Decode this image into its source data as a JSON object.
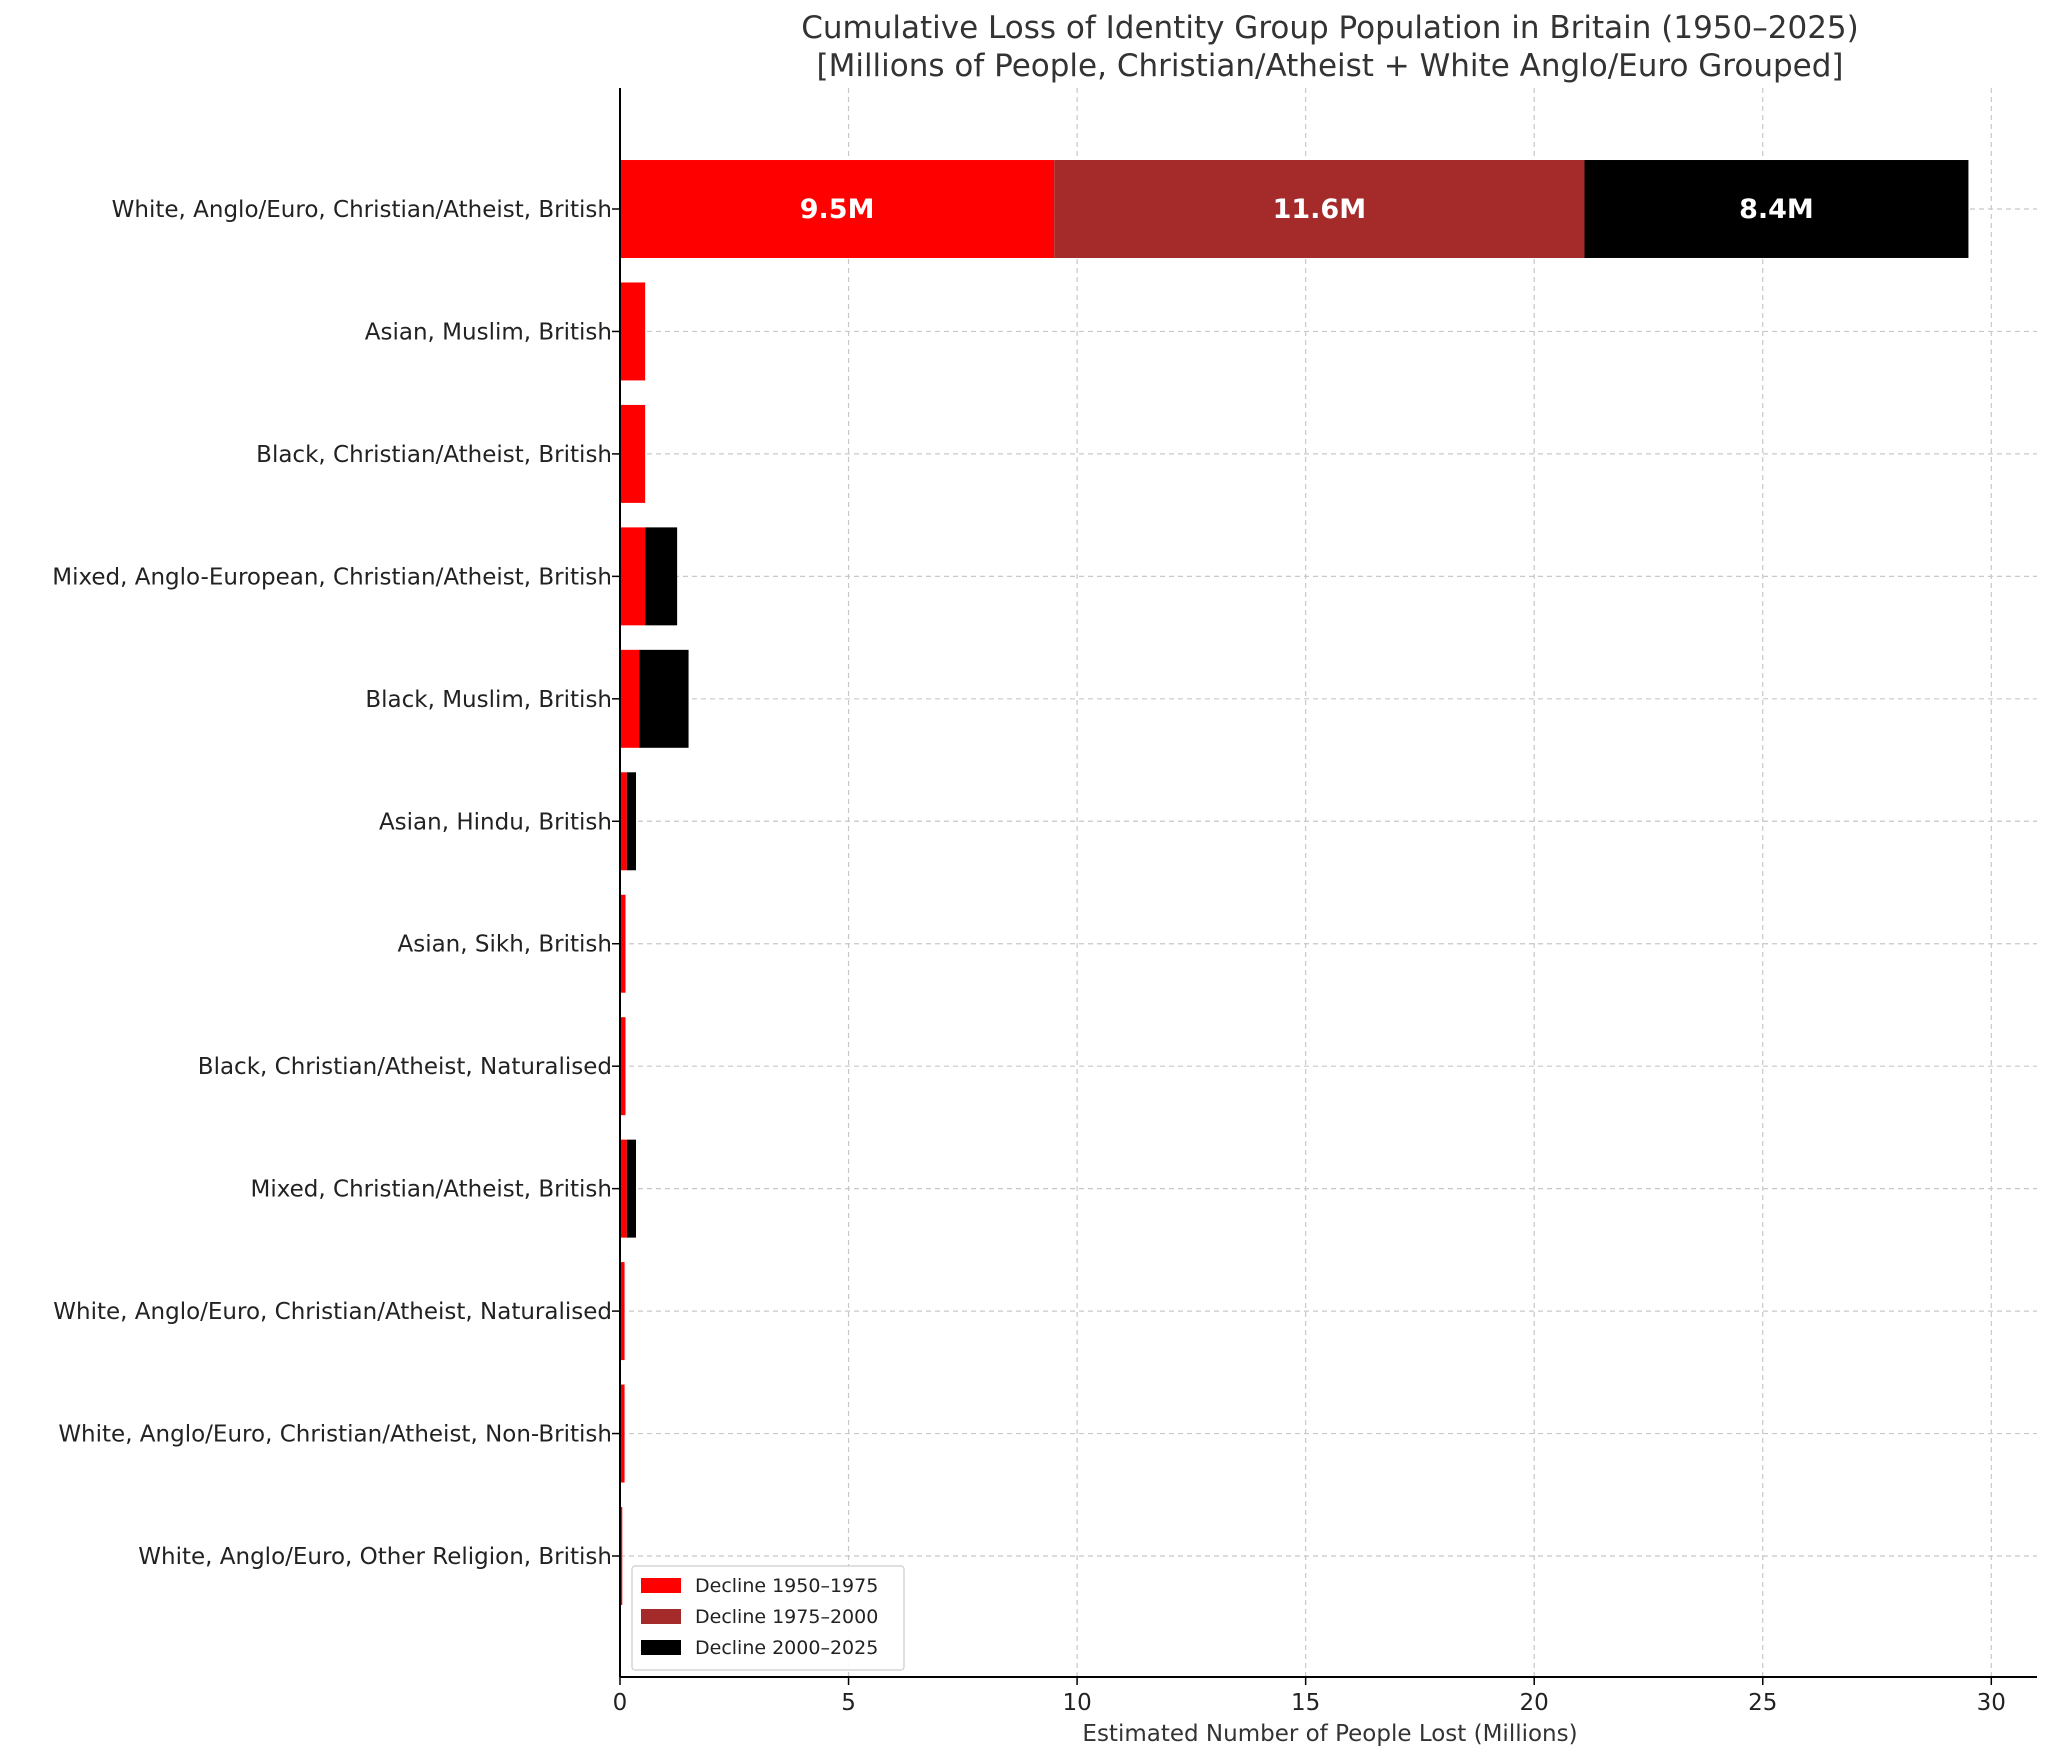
{
  "chart_data": {
    "type": "bar",
    "orientation": "horizontal",
    "stacked": true,
    "title_line1": "Cumulative Loss of Identity Group Population in Britain (1950–2025)",
    "title_line2": "[Millions of People, Christian/Atheist + White Anglo/Euro Grouped]",
    "xlabel": "Estimated Number of People Lost (Millions)",
    "ylabel": "",
    "xlim": [
      0,
      31
    ],
    "xticks": [
      0,
      5,
      10,
      15,
      20,
      25,
      30
    ],
    "grid": true,
    "legend_position": "lower-left",
    "categories": [
      "White, Anglo/Euro, Christian/Atheist, British",
      "Asian, Muslim, British",
      "Black, Christian/Atheist, British",
      "Mixed, Anglo-European, Christian/Atheist, British",
      "Black, Muslim, British",
      "Asian, Hindu, British",
      "Asian, Sikh, British",
      "Black, Christian/Atheist, Naturalised",
      "Mixed, Christian/Atheist, British",
      "White, Anglo/Euro, Christian/Atheist, Naturalised",
      "White, Anglo/Euro, Christian/Atheist, Non-British",
      "White, Anglo/Euro, Other Religion, British"
    ],
    "series": [
      {
        "name": "Decline 1950–1975",
        "color": "#ff0000",
        "values": [
          9.5,
          0.55,
          0.55,
          0.55,
          0.42,
          0.15,
          0.12,
          0.12,
          0.15,
          0.1,
          0.1,
          0.05
        ]
      },
      {
        "name": "Decline 1975–2000",
        "color": "#a52a2a",
        "values": [
          11.6,
          0,
          0,
          0,
          0,
          0,
          0,
          0,
          0,
          0,
          0,
          0
        ]
      },
      {
        "name": "Decline 2000–2025",
        "color": "#000000",
        "values": [
          8.4,
          0,
          0,
          0.7,
          1.08,
          0.2,
          0,
          0,
          0.2,
          0,
          0,
          0
        ]
      }
    ],
    "data_labels": [
      {
        "category_index": 0,
        "series_index": 0,
        "text": "9.5M"
      },
      {
        "category_index": 0,
        "series_index": 1,
        "text": "11.6M"
      },
      {
        "category_index": 0,
        "series_index": 2,
        "text": "8.4M"
      }
    ]
  }
}
